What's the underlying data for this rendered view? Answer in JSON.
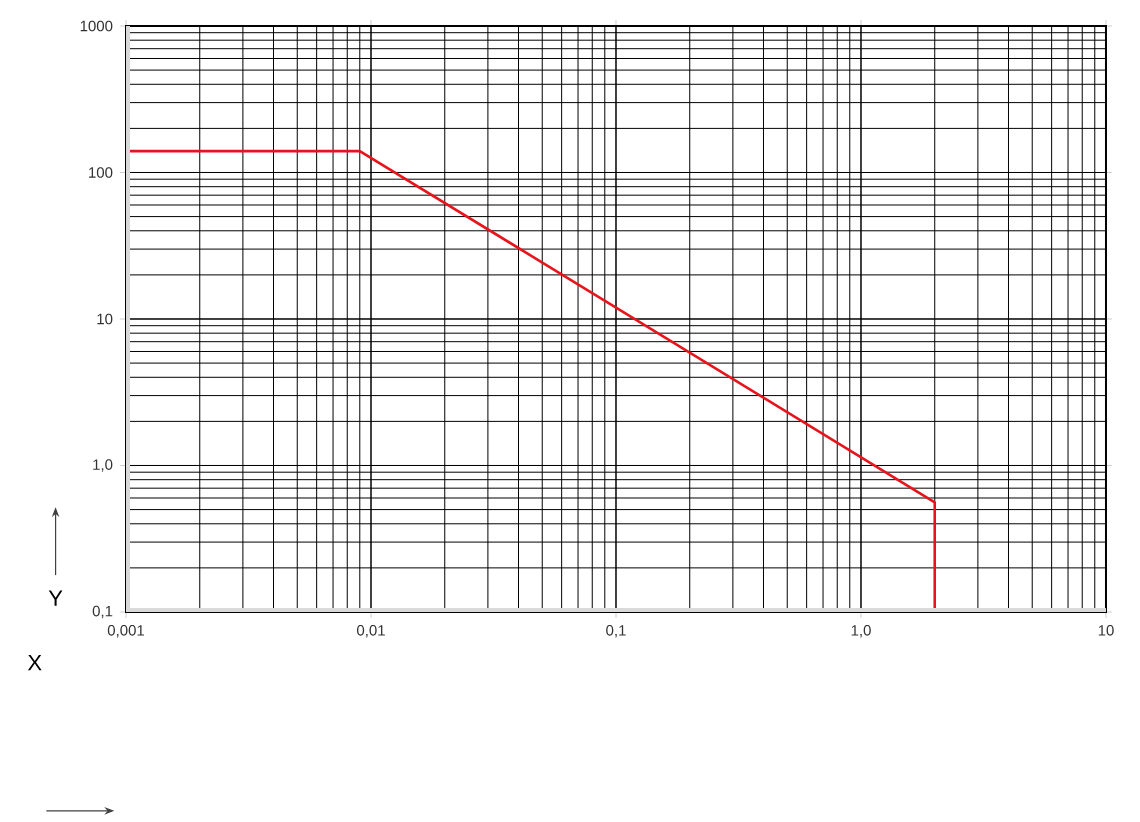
{
  "chart_data": {
    "type": "line",
    "xlabel": "X",
    "ylabel": "Y",
    "log": "xy",
    "grid": true,
    "xlim": [
      0.001,
      10
    ],
    "ylim": [
      0.1,
      1000
    ],
    "xticks": [
      {
        "value": 0.001,
        "label": "0,001"
      },
      {
        "value": 0.01,
        "label": "0,01"
      },
      {
        "value": 0.1,
        "label": "0,1"
      },
      {
        "value": 1,
        "label": "1,0"
      },
      10
    ],
    "yticks": [
      {
        "value": 0.1,
        "label": "0,1"
      },
      {
        "value": 1,
        "label": "1,0"
      },
      10,
      100,
      1000
    ],
    "series": [
      {
        "color": "#e8141c",
        "x": [
          0.001,
          0.009,
          2,
          2
        ],
        "values": [
          140,
          140,
          0.56,
          0.1
        ]
      }
    ]
  }
}
